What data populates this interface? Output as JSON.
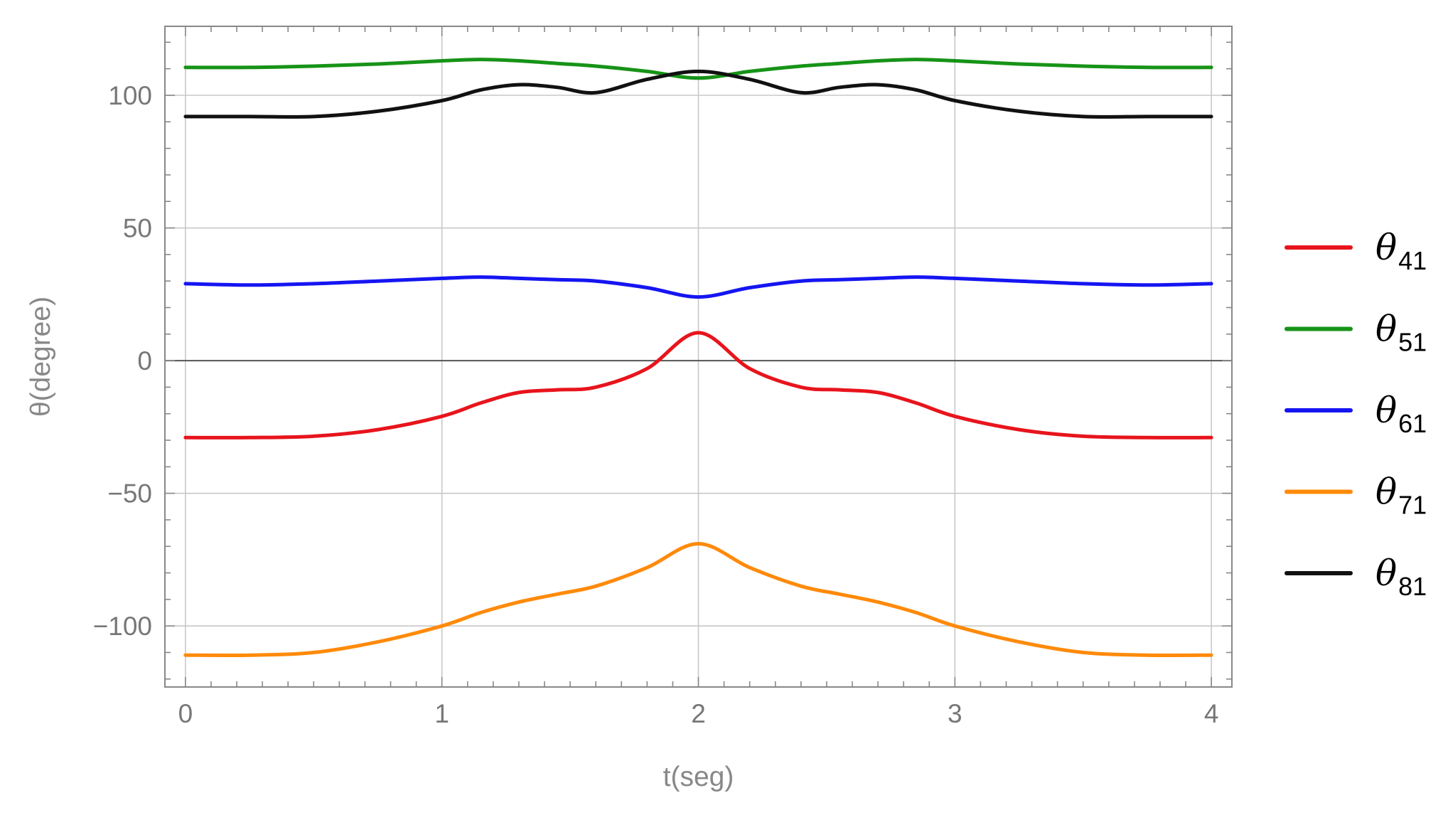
{
  "chart_data": {
    "type": "line",
    "title": "",
    "xlabel": "t(seg)",
    "ylabel": "θ(degree)",
    "xlim": [
      -0.08,
      4.08
    ],
    "ylim": [
      -123,
      126
    ],
    "xticks": [
      0,
      1,
      2,
      3,
      4
    ],
    "yticks": [
      -100,
      -50,
      0,
      50,
      100
    ],
    "ytick_labels": [
      "−100",
      "−50",
      "0",
      "50",
      "100"
    ],
    "xtick_labels": [
      "0",
      "1",
      "2",
      "3",
      "4"
    ],
    "grid": true,
    "legend_position": "right",
    "x": [
      0,
      0.25,
      0.5,
      0.75,
      1,
      1.15,
      1.3,
      1.45,
      1.6,
      1.8,
      2,
      2.2,
      2.4,
      2.55,
      2.7,
      2.85,
      3,
      3.25,
      3.5,
      3.75,
      4
    ],
    "series": [
      {
        "name": "41",
        "color": "#e8141c",
        "values": [
          -29,
          -29,
          -28.5,
          -26,
          -21,
          -16,
          -12,
          -11,
          -10,
          -3,
          10.5,
          -3,
          -10,
          -11,
          -12,
          -16,
          -21,
          -26,
          -28.5,
          -29,
          -29
        ]
      },
      {
        "name": "51",
        "color": "#179317",
        "values": [
          110.5,
          110.5,
          111,
          111.8,
          113,
          113.5,
          113,
          112,
          111,
          109,
          106.5,
          109,
          111,
          112,
          113,
          113.5,
          113,
          111.8,
          111,
          110.5,
          110.5
        ]
      },
      {
        "name": "61",
        "color": "#1515f2",
        "values": [
          29,
          28.5,
          29,
          30,
          31,
          31.5,
          31,
          30.5,
          30,
          27.5,
          24,
          27.5,
          30,
          30.5,
          31,
          31.5,
          31,
          30,
          29,
          28.5,
          29
        ]
      },
      {
        "name": "71",
        "color": "#ff8a0a",
        "values": [
          -111,
          -111,
          -110,
          -106,
          -100,
          -95,
          -91,
          -88,
          -85,
          -78,
          -69,
          -78,
          -85,
          -88,
          -91,
          -95,
          -100,
          -106,
          -110,
          -111,
          -111
        ]
      },
      {
        "name": "81",
        "color": "#111111",
        "values": [
          92,
          92,
          92,
          94,
          98,
          102,
          104,
          103,
          101,
          106,
          109,
          106,
          101,
          103,
          104,
          102,
          98,
          94,
          92,
          92,
          92
        ]
      }
    ]
  }
}
